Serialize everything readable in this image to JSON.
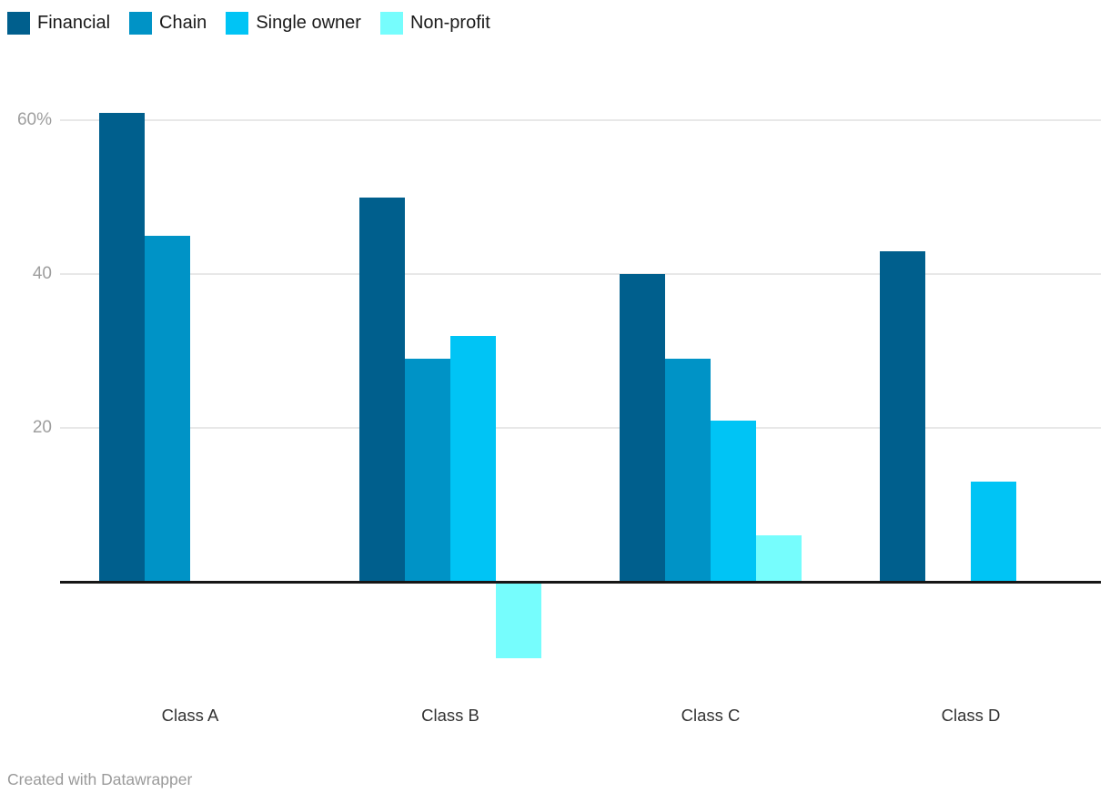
{
  "chart_data": {
    "type": "bar",
    "title": "",
    "categories": [
      "Class A",
      "Class B",
      "Class C",
      "Class D"
    ],
    "series": [
      {
        "name": "Financial",
        "color": "#005f8d",
        "values": [
          61,
          50,
          40,
          43
        ]
      },
      {
        "name": "Chain",
        "color": "#0093c6",
        "values": [
          45,
          29,
          29,
          null
        ]
      },
      {
        "name": "Single owner",
        "color": "#00c4f5",
        "values": [
          null,
          32,
          21,
          13
        ]
      },
      {
        "name": "Non-profit",
        "color": "#76fdfd",
        "values": [
          null,
          -10,
          6,
          null
        ]
      }
    ],
    "y_ticks": [
      {
        "value": 60,
        "label": "60%"
      },
      {
        "value": 40,
        "label": "40"
      },
      {
        "value": 20,
        "label": "20"
      }
    ],
    "ylim": [
      -12,
      64
    ],
    "grid": true,
    "legend_position": "top",
    "axis_color": "#161616",
    "grid_color": "#e8e8e8"
  },
  "footer": {
    "credit": "Created with Datawrapper"
  }
}
